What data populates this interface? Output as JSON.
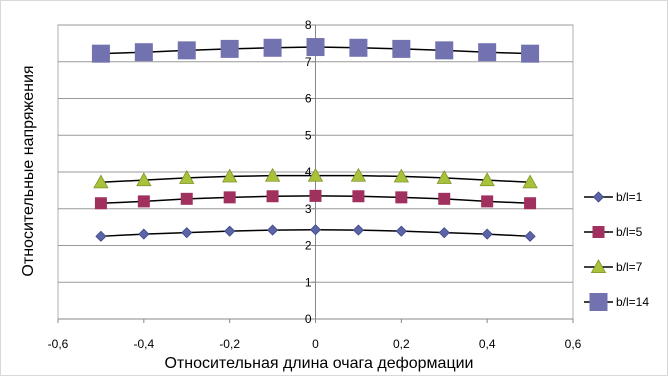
{
  "chart_data": {
    "type": "line",
    "title": "",
    "xlabel": "Относительная длина очага деформации",
    "ylabel": "Относительные напряжения",
    "xlim": [
      -0.6,
      0.6
    ],
    "ylim": [
      0,
      8
    ],
    "xticks": [
      -0.6,
      -0.4,
      -0.2,
      0,
      0.2,
      0.4,
      0.6
    ],
    "xtick_labels": [
      "-0,6",
      "-0,4",
      "-0,2",
      "0",
      "0,2",
      "0,4",
      "0,6"
    ],
    "yticks": [
      0,
      1,
      2,
      3,
      4,
      5,
      6,
      7,
      8
    ],
    "ytick_labels": [
      "0",
      "1",
      "2",
      "3",
      "4",
      "5",
      "6",
      "7",
      "8"
    ],
    "grid": "horizontal",
    "legend_position": "right",
    "x": [
      -0.5,
      -0.4,
      -0.3,
      -0.2,
      -0.1,
      0,
      0.1,
      0.2,
      0.3,
      0.4,
      0.5
    ],
    "series": [
      {
        "name": "b/l=1",
        "marker": "diamond",
        "color": "#5a64a6",
        "values": [
          2.25,
          2.31,
          2.35,
          2.39,
          2.42,
          2.43,
          2.42,
          2.39,
          2.35,
          2.31,
          2.25
        ]
      },
      {
        "name": "b/l=5",
        "marker": "square",
        "color": "#a0305e",
        "values": [
          3.15,
          3.2,
          3.27,
          3.31,
          3.34,
          3.35,
          3.34,
          3.31,
          3.27,
          3.2,
          3.15
        ]
      },
      {
        "name": "b/l=7",
        "marker": "triangle",
        "color": "#a8c23c",
        "values": [
          3.72,
          3.78,
          3.84,
          3.88,
          3.9,
          3.9,
          3.9,
          3.88,
          3.84,
          3.78,
          3.72
        ]
      },
      {
        "name": "b/l=14",
        "marker": "square",
        "color": "#7272b0",
        "values": [
          7.22,
          7.26,
          7.31,
          7.35,
          7.38,
          7.4,
          7.38,
          7.35,
          7.31,
          7.26,
          7.22
        ]
      }
    ]
  }
}
